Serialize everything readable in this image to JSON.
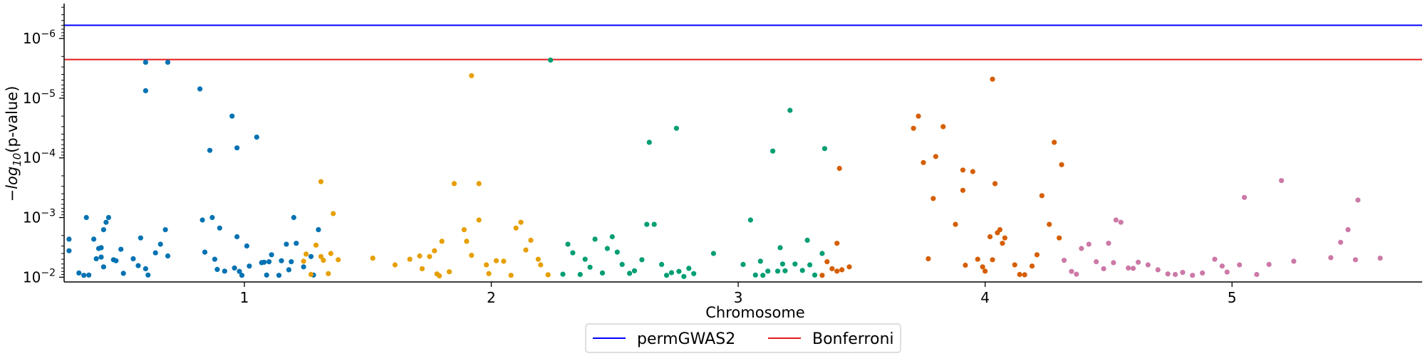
{
  "chart_data": {
    "type": "scatter",
    "title": "",
    "xlabel": "Chromosome",
    "ylabel": "−log10(p-value)",
    "xlim": [
      0.27,
      5.77
    ],
    "yscale": "log",
    "ylim": [
      0.012,
      2.6e-07
    ],
    "x_ticks": [
      {
        "x": 1.0,
        "label": "1"
      },
      {
        "x": 2.0,
        "label": "2"
      },
      {
        "x": 3.0,
        "label": "3"
      },
      {
        "x": 4.0,
        "label": "4"
      },
      {
        "x": 5.0,
        "label": "5"
      }
    ],
    "y_ticks": [
      {
        "value": 1e-06,
        "base": "10",
        "exp": "−6"
      },
      {
        "value": 1e-05,
        "base": "10",
        "exp": "−5"
      },
      {
        "value": 0.0001,
        "base": "10",
        "exp": "−4"
      },
      {
        "value": 0.001,
        "base": "10",
        "exp": "−3"
      },
      {
        "value": 0.01,
        "base": "10",
        "exp": "−2"
      }
    ],
    "reference_lines": [
      {
        "name": "permGWAS2",
        "y": 6e-07,
        "color": "#0000ff"
      },
      {
        "name": "Bonferroni",
        "y": 2.25e-06,
        "color": "#e41a1c"
      }
    ],
    "legend": {
      "position": "bottom-center"
    },
    "chromosome_colors": [
      "#0072b2",
      "#e69f00",
      "#009e73",
      "#d55e00",
      "#cc79a7"
    ],
    "series": [
      {
        "chromosome": "1",
        "points": [
          [
            0.29,
            0.0023
          ],
          [
            0.29,
            0.0036
          ],
          [
            0.33,
            0.0085
          ],
          [
            0.35,
            0.0093
          ],
          [
            0.37,
            0.0092
          ],
          [
            0.36,
            0.001
          ],
          [
            0.39,
            0.0023
          ],
          [
            0.4,
            0.0049
          ],
          [
            0.41,
            0.0033
          ],
          [
            0.42,
            0.0032
          ],
          [
            0.42,
            0.0046
          ],
          [
            0.43,
            0.0067
          ],
          [
            0.43,
            0.0016
          ],
          [
            0.44,
            0.0012
          ],
          [
            0.45,
            0.001
          ],
          [
            0.47,
            0.0051
          ],
          [
            0.48,
            0.0053
          ],
          [
            0.5,
            0.0034
          ],
          [
            0.51,
            0.0086
          ],
          [
            0.55,
            0.0049
          ],
          [
            0.57,
            0.0064
          ],
          [
            0.58,
            0.0022
          ],
          [
            0.6,
            0.0072
          ],
          [
            0.61,
            0.0092
          ],
          [
            0.6,
            2.5e-06
          ],
          [
            0.6,
            7.5e-06
          ],
          [
            0.64,
            0.0039
          ],
          [
            0.66,
            0.0028
          ],
          [
            0.68,
            0.0016
          ],
          [
            0.69,
            2.5e-06
          ],
          [
            0.69,
            0.0044
          ],
          [
            0.82,
            7e-06
          ],
          [
            0.83,
            0.0011
          ],
          [
            0.84,
            0.0038
          ],
          [
            0.86,
            7.5e-05
          ],
          [
            0.87,
            0.001
          ],
          [
            0.88,
            0.005
          ],
          [
            0.89,
            0.0074
          ],
          [
            0.9,
            0.0015
          ],
          [
            0.92,
            0.0079
          ],
          [
            0.95,
            2e-05
          ],
          [
            0.96,
            0.007
          ],
          [
            0.97,
            0.0021
          ],
          [
            0.97,
            6.8e-05
          ],
          [
            0.98,
            0.008
          ],
          [
            0.99,
            0.0093
          ],
          [
            1.01,
            0.003
          ],
          [
            1.02,
            0.0065
          ],
          [
            1.05,
            4.5e-05
          ],
          [
            1.07,
            0.0057
          ],
          [
            1.08,
            0.0056
          ],
          [
            1.09,
            0.0092
          ],
          [
            1.1,
            0.0055
          ],
          [
            1.11,
            0.0042
          ],
          [
            1.14,
            0.0093
          ],
          [
            1.15,
            0.0053
          ],
          [
            1.17,
            0.0028
          ],
          [
            1.18,
            0.0075
          ],
          [
            1.19,
            0.0055
          ],
          [
            1.2,
            0.001
          ],
          [
            1.21,
            0.0027
          ],
          [
            1.24,
            0.0067
          ],
          [
            1.27,
            0.0045
          ],
          [
            1.28,
            0.0092
          ],
          [
            1.3,
            0.0016
          ]
        ]
      },
      {
        "chromosome": "2",
        "points": [
          [
            1.24,
            0.0054
          ],
          [
            1.25,
            0.0041
          ],
          [
            1.27,
            0.009
          ],
          [
            1.29,
            0.0029
          ],
          [
            1.31,
            0.0045
          ],
          [
            1.32,
            0.0052
          ],
          [
            1.34,
            0.0087
          ],
          [
            1.35,
            0.004
          ],
          [
            1.38,
            0.0051
          ],
          [
            1.31,
            0.00025
          ],
          [
            1.36,
            0.00086
          ],
          [
            1.52,
            0.0048
          ],
          [
            1.61,
            0.0062
          ],
          [
            1.67,
            0.005
          ],
          [
            1.71,
            0.0044
          ],
          [
            1.72,
            0.0072
          ],
          [
            1.75,
            0.0045
          ],
          [
            1.77,
            0.0036
          ],
          [
            1.78,
            0.0088
          ],
          [
            1.79,
            0.0095
          ],
          [
            1.8,
            0.0025
          ],
          [
            1.83,
            0.0081
          ],
          [
            1.85,
            0.00027
          ],
          [
            1.89,
            0.0016
          ],
          [
            1.9,
            0.0025
          ],
          [
            1.92,
            0.0043
          ],
          [
            1.95,
            0.0011
          ],
          [
            1.95,
            0.00027
          ],
          [
            1.98,
            0.0062
          ],
          [
            1.99,
            0.0087
          ],
          [
            2.02,
            0.0053
          ],
          [
            2.05,
            0.0054
          ],
          [
            2.08,
            0.0093
          ],
          [
            2.1,
            0.0015
          ],
          [
            2.12,
            0.0012
          ],
          [
            2.14,
            0.0035
          ],
          [
            2.16,
            0.0024
          ],
          [
            2.19,
            0.005
          ],
          [
            2.2,
            0.0062
          ],
          [
            2.23,
            0.0091
          ],
          [
            1.92,
            4.2e-06
          ]
        ]
      },
      {
        "chromosome": "3",
        "points": [
          [
            2.24,
            2.3e-06
          ],
          [
            2.29,
            0.0089
          ],
          [
            2.31,
            0.0028
          ],
          [
            2.33,
            0.0039
          ],
          [
            2.36,
            0.009
          ],
          [
            2.38,
            0.005
          ],
          [
            2.4,
            0.0068
          ],
          [
            2.42,
            0.0023
          ],
          [
            2.45,
            0.0085
          ],
          [
            2.47,
            0.0033
          ],
          [
            2.49,
            0.0021
          ],
          [
            2.51,
            0.0038
          ],
          [
            2.53,
            0.0061
          ],
          [
            2.56,
            0.0086
          ],
          [
            2.58,
            0.0078
          ],
          [
            2.61,
            0.0051
          ],
          [
            2.63,
            0.0013
          ],
          [
            2.64,
            5.5e-05
          ],
          [
            2.66,
            0.0013
          ],
          [
            2.69,
            0.0061
          ],
          [
            2.71,
            0.0093
          ],
          [
            2.73,
            0.0084
          ],
          [
            2.76,
            0.008
          ],
          [
            2.78,
            0.0097
          ],
          [
            2.8,
            0.0071
          ],
          [
            2.82,
            0.0087
          ],
          [
            2.75,
            3.2e-05
          ],
          [
            2.9,
            0.004
          ],
          [
            3.02,
            0.0061
          ],
          [
            3.05,
            0.0011
          ],
          [
            3.07,
            0.0092
          ],
          [
            3.09,
            0.0054
          ],
          [
            3.1,
            0.0093
          ],
          [
            3.12,
            0.0079
          ],
          [
            3.14,
            7.7e-05
          ],
          [
            3.16,
            0.0079
          ],
          [
            3.17,
            0.0032
          ],
          [
            3.18,
            0.006
          ],
          [
            3.19,
            0.0078
          ],
          [
            3.21,
            1.6e-05
          ],
          [
            3.23,
            0.006
          ],
          [
            3.26,
            0.0077
          ],
          [
            3.28,
            0.0024
          ],
          [
            3.29,
            0.0062
          ],
          [
            3.31,
            0.0092
          ],
          [
            3.34,
            0.004
          ],
          [
            3.35,
            7e-05
          ]
        ]
      },
      {
        "chromosome": "4",
        "points": [
          [
            3.34,
            0.0093
          ],
          [
            3.36,
            0.0055
          ],
          [
            3.38,
            0.0072
          ],
          [
            3.4,
            0.0079
          ],
          [
            3.42,
            0.0075
          ],
          [
            3.45,
            0.0067
          ],
          [
            3.41,
            0.00015
          ],
          [
            3.4,
            0.0027
          ],
          [
            3.71,
            3.2e-05
          ],
          [
            3.73,
            2e-05
          ],
          [
            3.75,
            0.00012
          ],
          [
            3.77,
            0.0049
          ],
          [
            3.79,
            0.00048
          ],
          [
            3.8,
            9.5e-05
          ],
          [
            3.83,
            3e-05
          ],
          [
            3.88,
            0.0013
          ],
          [
            3.91,
            0.00016
          ],
          [
            3.91,
            0.00035
          ],
          [
            3.92,
            0.0063
          ],
          [
            3.95,
            0.00017
          ],
          [
            3.97,
            0.005
          ],
          [
            3.99,
            0.0067
          ],
          [
            4.0,
            0.0079
          ],
          [
            4.02,
            0.0021
          ],
          [
            4.03,
            0.0051
          ],
          [
            4.05,
            0.0018
          ],
          [
            4.06,
            0.0016
          ],
          [
            4.07,
            0.0027
          ],
          [
            4.08,
            0.0022
          ],
          [
            4.04,
            0.00027
          ],
          [
            4.12,
            0.0062
          ],
          [
            4.14,
            0.009
          ],
          [
            4.16,
            0.0091
          ],
          [
            4.19,
            0.0065
          ],
          [
            4.21,
            0.0042
          ],
          [
            4.23,
            0.00043
          ],
          [
            4.26,
            0.0013
          ],
          [
            4.28,
            5.5e-05
          ],
          [
            4.31,
            0.00013
          ],
          [
            4.3,
            0.0022
          ],
          [
            4.03,
            4.8e-06
          ]
        ]
      },
      {
        "chromosome": "5",
        "points": [
          [
            4.32,
            0.0052
          ],
          [
            4.35,
            0.008
          ],
          [
            4.37,
            0.0089
          ],
          [
            4.39,
            0.0033
          ],
          [
            4.42,
            0.0028
          ],
          [
            4.45,
            0.0055
          ],
          [
            4.48,
            0.0072
          ],
          [
            4.5,
            0.0027
          ],
          [
            4.52,
            0.0057
          ],
          [
            4.53,
            0.0011
          ],
          [
            4.55,
            0.0012
          ],
          [
            4.58,
            0.007
          ],
          [
            4.6,
            0.0071
          ],
          [
            4.62,
            0.0056
          ],
          [
            4.66,
            0.0062
          ],
          [
            4.7,
            0.0075
          ],
          [
            4.74,
            0.0088
          ],
          [
            4.77,
            0.009
          ],
          [
            4.8,
            0.0083
          ],
          [
            4.84,
            0.0093
          ],
          [
            4.88,
            0.0085
          ],
          [
            4.93,
            0.005
          ],
          [
            4.96,
            0.0065
          ],
          [
            4.98,
            0.0082
          ],
          [
            5.03,
            0.0062
          ],
          [
            5.05,
            0.00046
          ],
          [
            5.1,
            0.009
          ],
          [
            5.15,
            0.0061
          ],
          [
            5.2,
            0.00024
          ],
          [
            5.25,
            0.0054
          ],
          [
            5.4,
            0.0047
          ],
          [
            5.44,
            0.0026
          ],
          [
            5.47,
            0.0016
          ],
          [
            5.5,
            0.0051
          ],
          [
            5.51,
            0.00051
          ],
          [
            5.6,
            0.0048
          ]
        ]
      }
    ]
  }
}
